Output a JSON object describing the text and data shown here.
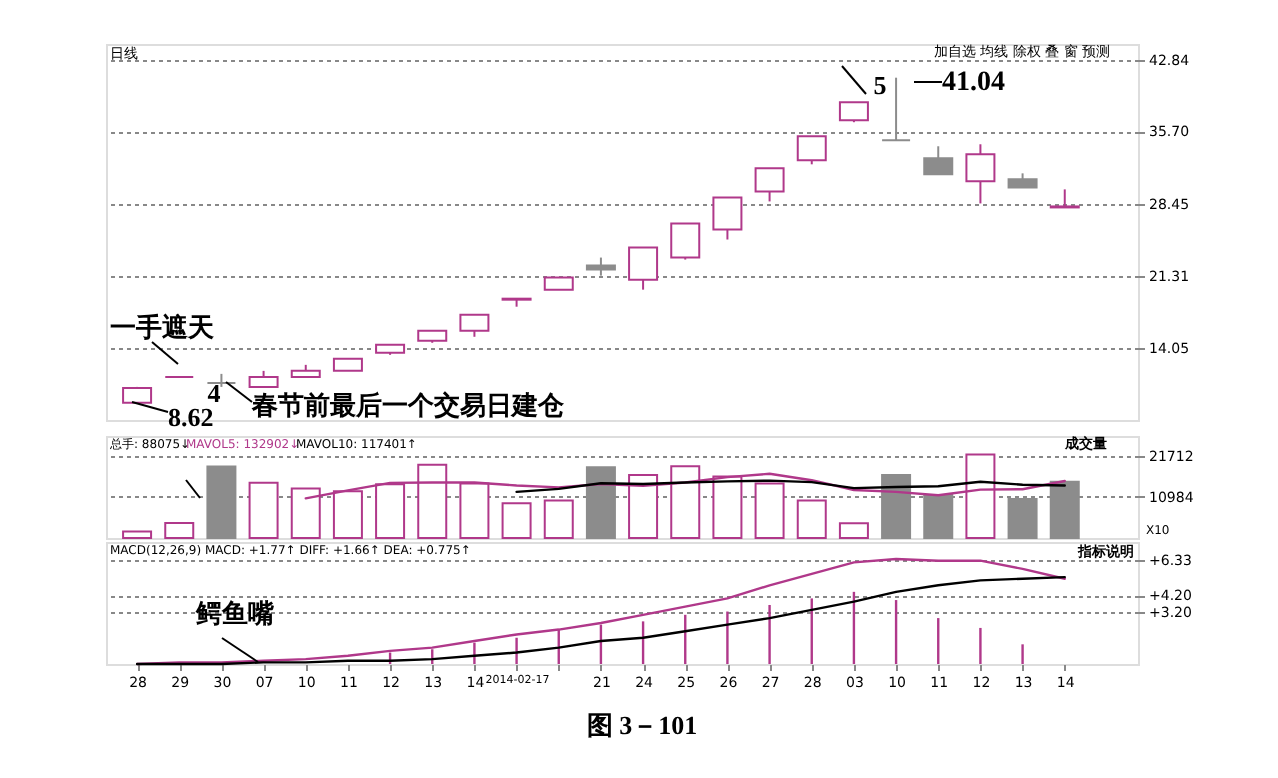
{
  "chart_data": [
    {
      "type": "candlestick",
      "categories": [
        "28",
        "29",
        "30",
        "07",
        "10",
        "11",
        "12",
        "13",
        "14",
        "2014-02-17",
        null,
        "21",
        "24",
        "25",
        "26",
        "27",
        "28",
        "03",
        "10",
        "11",
        "12",
        "13",
        "14"
      ],
      "ohlc": [
        [
          8.62,
          10.2,
          8.62,
          10.1
        ],
        [
          11.2,
          11.2,
          11.2,
          11.2
        ],
        [
          10.6,
          11.5,
          10.2,
          10.6
        ],
        [
          10.2,
          11.8,
          10.2,
          11.2
        ],
        [
          11.2,
          12.4,
          11.2,
          11.8
        ],
        [
          11.8,
          13.0,
          11.8,
          13.0
        ],
        [
          13.6,
          14.4,
          13.4,
          14.4
        ],
        [
          14.8,
          15.8,
          14.6,
          15.8
        ],
        [
          15.8,
          17.4,
          15.2,
          17.4
        ],
        [
          18.9,
          19.0,
          18.2,
          19.0
        ],
        [
          19.9,
          21.1,
          19.9,
          21.1
        ],
        [
          22.3,
          23.1,
          21.3,
          21.9
        ],
        [
          20.9,
          24.1,
          19.9,
          24.1
        ],
        [
          23.1,
          26.5,
          22.9,
          26.5
        ],
        [
          25.9,
          29.1,
          24.9,
          29.1
        ],
        [
          29.7,
          32.0,
          28.7,
          32.0
        ],
        [
          32.8,
          35.2,
          32.4,
          35.2
        ],
        [
          36.8,
          38.6,
          36.6,
          38.6
        ],
        [
          34.8,
          41.04,
          34.8,
          34.8
        ],
        [
          33.0,
          34.2,
          31.4,
          31.4
        ],
        [
          30.7,
          34.4,
          28.5,
          33.4
        ],
        [
          30.9,
          31.5,
          30.1,
          30.1
        ],
        [
          28.1,
          29.9,
          28.1,
          28.2
        ]
      ],
      "colors": [
        "#b0388a",
        "#b0388a",
        "#8c8c8c",
        "#b0388a",
        "#b0388a",
        "#b0388a",
        "#b0388a",
        "#b0388a",
        "#b0388a",
        "#b0388a",
        "#b0388a",
        "#8c8c8c",
        "#b0388a",
        "#b0388a",
        "#b0388a",
        "#b0388a",
        "#b0388a",
        "#b0388a",
        "#8c8c8c",
        "#8c8c8c",
        "#b0388a",
        "#8c8c8c",
        "#b0388a"
      ],
      "ylim": [
        6.9,
        44.4
      ],
      "yticks": [
        14.05,
        21.31,
        28.45,
        {
          "value": 35.7,
          "label": "35.70"
        },
        42.84
      ],
      "grid": "y",
      "tick_labels": "y",
      "annotations": [
        "日线",
        "一手遮天",
        "8.62",
        "4",
        "春节前最后一个交易日建仓",
        "5",
        "41.04",
        "加自选 均线 除权 叠 窗 预测"
      ]
    },
    {
      "type": "bar",
      "categories": [
        "28",
        "29",
        "30",
        "07",
        "10",
        "11",
        "12",
        "13",
        "14",
        "2014-02-17",
        null,
        "21",
        "24",
        "25",
        "26",
        "27",
        "28",
        "03",
        "10",
        "11",
        "12",
        "13",
        "14"
      ],
      "series": [
        {
          "type": "bar",
          "values": [
            1700,
            4000,
            18900,
            14600,
            13100,
            12400,
            14200,
            19400,
            14400,
            9200,
            9900,
            18700,
            16700,
            19000,
            16300,
            14400,
            9900,
            3900,
            16700,
            11400,
            22100,
            10300,
            14900
          ],
          "colors": [
            "#b0388a",
            "#b0388a",
            "#8c8c8c",
            "#b0388a",
            "#b0388a",
            "#b0388a",
            "#b0388a",
            "#b0388a",
            "#b0388a",
            "#b0388a",
            "#b0388a",
            "#8c8c8c",
            "#b0388a",
            "#b0388a",
            "#b0388a",
            "#b0388a",
            "#b0388a",
            "#b0388a",
            "#8c8c8c",
            "#8c8c8c",
            "#b0388a",
            "#8c8c8c",
            "#8c8c8c"
          ]
        },
        {
          "type": "line",
          "color": "#b0388a",
          "values": [
            null,
            null,
            null,
            null,
            10500,
            12600,
            14600,
            14700,
            14700,
            13900,
            13400,
            14300,
            13800,
            14700,
            16100,
            17000,
            15300,
            12700,
            12200,
            11300,
            12800,
            12900,
            15100
          ]
        },
        {
          "type": "line",
          "color": "#000000",
          "values": [
            null,
            null,
            null,
            null,
            null,
            null,
            null,
            null,
            null,
            12200,
            13000,
            14500,
            14300,
            14700,
            15000,
            15200,
            14800,
            13200,
            13500,
            13700,
            14900,
            14100,
            13900
          ]
        }
      ],
      "ylim": [
        0,
        27000
      ],
      "yticks": [
        21712,
        10984
      ],
      "grid": "y",
      "tick_labels": "y",
      "annotations": [
        "总手: 88075↓",
        "MAVOL5: 132902↓",
        "MAVOL10: 117401↑",
        "成交量",
        "X10"
      ]
    },
    {
      "type": "bar",
      "categories": [
        "28",
        "29",
        "30",
        "07",
        "10",
        "11",
        "12",
        "13",
        "14",
        "2014-02-17",
        null,
        "21",
        "24",
        "25",
        "26",
        "27",
        "28",
        "03",
        "10",
        "11",
        "12",
        "13",
        "14"
      ],
      "series": [
        {
          "type": "bar",
          "color": "#b0388a",
          "values": [
            0,
            0,
            0,
            null,
            null,
            null,
            0.7,
            0.9,
            1.3,
            1.6,
            2.1,
            2.4,
            2.6,
            3.0,
            3.2,
            3.6,
            4.0,
            4.4,
            3.9,
            2.8,
            2.2,
            1.2,
            null
          ]
        },
        {
          "type": "line",
          "color": "#b0388a",
          "values": [
            0,
            0.1,
            0.1,
            0.2,
            0.3,
            0.5,
            0.8,
            1.0,
            1.4,
            1.8,
            2.1,
            2.5,
            3.0,
            3.5,
            4.0,
            4.8,
            5.5,
            6.2,
            6.4,
            6.3,
            6.3,
            5.8,
            5.2
          ]
        },
        {
          "type": "line",
          "color": "#000000",
          "values": [
            0,
            0,
            0,
            0.1,
            0.1,
            0.2,
            0.2,
            0.3,
            0.5,
            0.7,
            1.0,
            1.4,
            1.6,
            2.0,
            2.4,
            2.8,
            3.3,
            3.8,
            4.4,
            4.8,
            5.1,
            5.2,
            5.3
          ]
        }
      ],
      "ylim": [
        0,
        7.44
      ],
      "yticks": [
        {
          "value": 6.33,
          "label": "+6.33"
        },
        {
          "value": 4.2,
          "label": "+4.20"
        },
        {
          "value": 3.2,
          "label": "+3.20"
        }
      ],
      "grid": "y",
      "annotations": [
        "MACD(12,26,9) MACD: +1.77↑ DIFF: +1.66↑ DEA: +0.775↑",
        "指标说明",
        "鳄鱼嘴",
        "图 3－101"
      ]
    }
  ]
}
